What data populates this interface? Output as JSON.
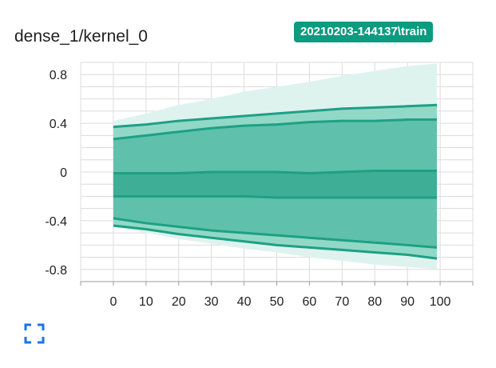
{
  "card": {
    "title": "dense_1/kernel_0",
    "run": "20210203-144137\\train"
  },
  "colors": {
    "accent": "#0b9b7e",
    "band_outer": "#dff3ee",
    "band_2": "#92d8c6",
    "band_3": "#5fc1ab",
    "band_inner": "#3fae96",
    "line": "#1ea085",
    "icon": "#1a73e8"
  },
  "icons": {
    "fullscreen": "fullscreen-icon"
  },
  "chart_data": {
    "type": "area",
    "title": "dense_1/kernel_0",
    "xlim": [
      -10,
      110
    ],
    "ylim": [
      -0.9,
      0.9
    ],
    "xticks": [
      0,
      10,
      20,
      30,
      40,
      50,
      60,
      70,
      80,
      90,
      100
    ],
    "yticks": [
      0.8,
      0.4,
      0,
      -0.4,
      -0.8
    ],
    "x_tick_labels": [
      "0",
      "10",
      "20",
      "30",
      "40",
      "50",
      "60",
      "70",
      "80",
      "90",
      "100"
    ],
    "y_tick_labels": [
      "0.8",
      "0.4",
      "0",
      "-0.4",
      "-0.8"
    ],
    "grid": true,
    "x": [
      0,
      10,
      20,
      30,
      40,
      50,
      60,
      70,
      80,
      90,
      99
    ],
    "series": [
      {
        "values": [
          0.42,
          0.48,
          0.55,
          0.6,
          0.66,
          0.7,
          0.74,
          0.79,
          0.83,
          0.87,
          0.89
        ]
      },
      {
        "values": [
          0.37,
          0.39,
          0.42,
          0.44,
          0.46,
          0.48,
          0.5,
          0.52,
          0.53,
          0.54,
          0.55
        ]
      },
      {
        "values": [
          0.27,
          0.3,
          0.33,
          0.36,
          0.38,
          0.39,
          0.41,
          0.42,
          0.42,
          0.43,
          0.43
        ]
      },
      {
        "values": [
          -0.01,
          -0.01,
          -0.01,
          0.0,
          0.0,
          0.0,
          -0.01,
          0.0,
          0.01,
          0.01,
          0.01
        ]
      },
      {
        "values": [
          -0.2,
          -0.2,
          -0.2,
          -0.2,
          -0.2,
          -0.21,
          -0.21,
          -0.21,
          -0.21,
          -0.21,
          -0.21
        ]
      },
      {
        "values": [
          -0.38,
          -0.42,
          -0.45,
          -0.48,
          -0.5,
          -0.52,
          -0.54,
          -0.56,
          -0.58,
          -0.6,
          -0.62
        ]
      },
      {
        "values": [
          -0.44,
          -0.47,
          -0.51,
          -0.54,
          -0.57,
          -0.6,
          -0.62,
          -0.64,
          -0.66,
          -0.68,
          -0.71
        ]
      },
      {
        "values": [
          -0.45,
          -0.5,
          -0.55,
          -0.59,
          -0.63,
          -0.66,
          -0.7,
          -0.73,
          -0.76,
          -0.78,
          -0.8
        ]
      }
    ]
  }
}
